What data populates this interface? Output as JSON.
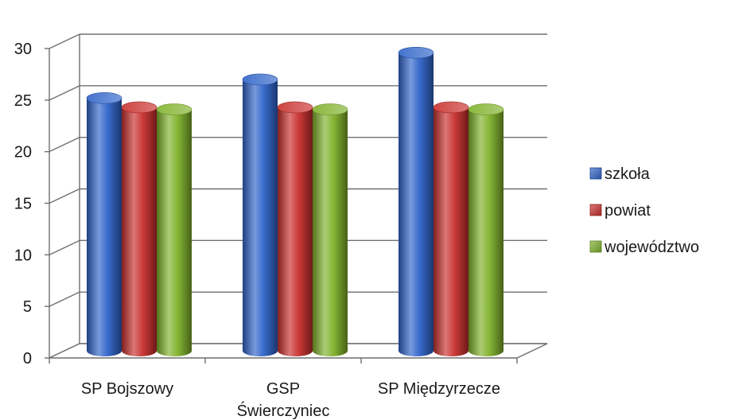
{
  "chart_data": {
    "type": "bar",
    "categories": [
      [
        "SP Bojszowy"
      ],
      [
        "GSP",
        "Świerczyniec"
      ],
      [
        "SP Międzyrzecze"
      ]
    ],
    "series": [
      {
        "name": "szkoła",
        "color": "#2f63c9",
        "values": [
          24.5,
          26.3,
          28.9
        ]
      },
      {
        "name": "powiat",
        "color": "#c8302d",
        "values": [
          23.6,
          23.6,
          23.6
        ]
      },
      {
        "name": "województwo",
        "color": "#7fb12a",
        "values": [
          23.4,
          23.4,
          23.4
        ]
      }
    ],
    "y_ticks": [
      "0",
      "5",
      "10",
      "15",
      "20",
      "25",
      "30"
    ],
    "ylim": [
      0,
      30
    ],
    "grid": true,
    "legend_position": "right",
    "style": "3d-cylinder"
  }
}
